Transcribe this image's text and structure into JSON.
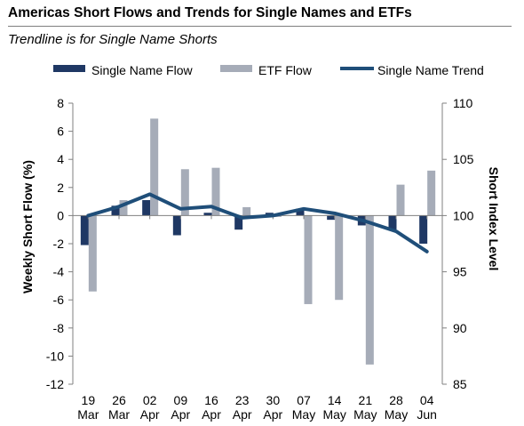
{
  "title": "Americas Short Flows and Trends for Single Names and ETFs",
  "subtitle": "Trendline is for Single Name Shorts",
  "chart_data": {
    "type": "bar",
    "categories": [
      {
        "day": "19",
        "month": "Mar"
      },
      {
        "day": "26",
        "month": "Mar"
      },
      {
        "day": "02",
        "month": "Apr"
      },
      {
        "day": "09",
        "month": "Apr"
      },
      {
        "day": "16",
        "month": "Apr"
      },
      {
        "day": "23",
        "month": "Apr"
      },
      {
        "day": "30",
        "month": "Apr"
      },
      {
        "day": "07",
        "month": "May"
      },
      {
        "day": "14",
        "month": "May"
      },
      {
        "day": "21",
        "month": "May"
      },
      {
        "day": "28",
        "month": "May"
      },
      {
        "day": "04",
        "month": "Jun"
      }
    ],
    "series": [
      {
        "name": "Single Name Flow",
        "kind": "bar",
        "axis": "left",
        "color": "#1f3864",
        "values": [
          -2.1,
          0.7,
          1.1,
          -1.4,
          0.2,
          -1.0,
          0.2,
          0.5,
          -0.3,
          -0.7,
          -1.0,
          -2.0
        ]
      },
      {
        "name": "ETF Flow",
        "kind": "bar",
        "axis": "left",
        "color": "#a6acb8",
        "values": [
          -5.4,
          1.1,
          6.9,
          3.3,
          3.4,
          0.6,
          -0.1,
          -6.3,
          -6.0,
          -10.6,
          2.2,
          3.2
        ]
      },
      {
        "name": "Single Name Trend",
        "kind": "line",
        "axis": "right",
        "color": "#1f4e79",
        "values": [
          100.0,
          100.8,
          101.9,
          100.6,
          100.8,
          99.8,
          100.0,
          100.6,
          100.2,
          99.5,
          98.6,
          96.8
        ]
      }
    ],
    "ylabel": "Weekly Short Flow (%)",
    "y2label": "Short Index Level",
    "ylim": [
      -12,
      8
    ],
    "y2lim": [
      85,
      110
    ],
    "yticks": [
      "8",
      "6",
      "4",
      "2",
      "0",
      "-2",
      "-4",
      "-6",
      "-8",
      "-10",
      "-12"
    ],
    "y2ticks": [
      "110",
      "105",
      "100",
      "95",
      "90",
      "85"
    ],
    "legend_position": "top",
    "grid": false
  }
}
